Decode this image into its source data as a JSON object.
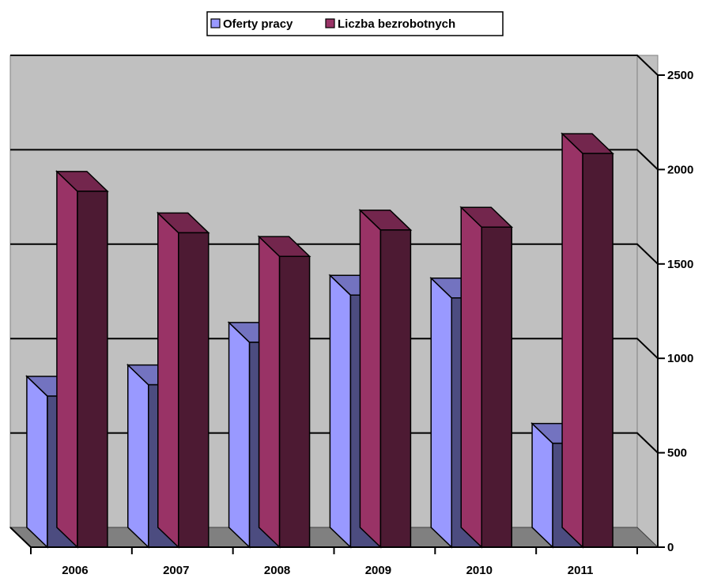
{
  "chart_data": {
    "type": "bar",
    "categories": [
      "2006",
      "2007",
      "2008",
      "2009",
      "2010",
      "2011"
    ],
    "series": [
      {
        "name": "Oferty pracy",
        "values": [
          800,
          860,
          1085,
          1335,
          1320,
          550
        ]
      },
      {
        "name": "Liczba bezrobotnych",
        "values": [
          1885,
          1665,
          1540,
          1680,
          1695,
          2085
        ]
      }
    ],
    "yticks": [
      "0",
      "500",
      "1000",
      "1500",
      "2000",
      "2500"
    ],
    "ylim": [
      0,
      2500
    ],
    "title": "",
    "xlabel": "",
    "ylabel": "",
    "legend_position": "top-center",
    "grid": true,
    "three_d": true,
    "colors": {
      "series_front": [
        "#4C4C80",
        "#4D1A33"
      ],
      "series_side": [
        "#9999FF",
        "#993366"
      ],
      "series_top": [
        "#7373C0",
        "#73264D"
      ],
      "plot_wall": "#C0C0C0",
      "floor": "#808080"
    }
  }
}
